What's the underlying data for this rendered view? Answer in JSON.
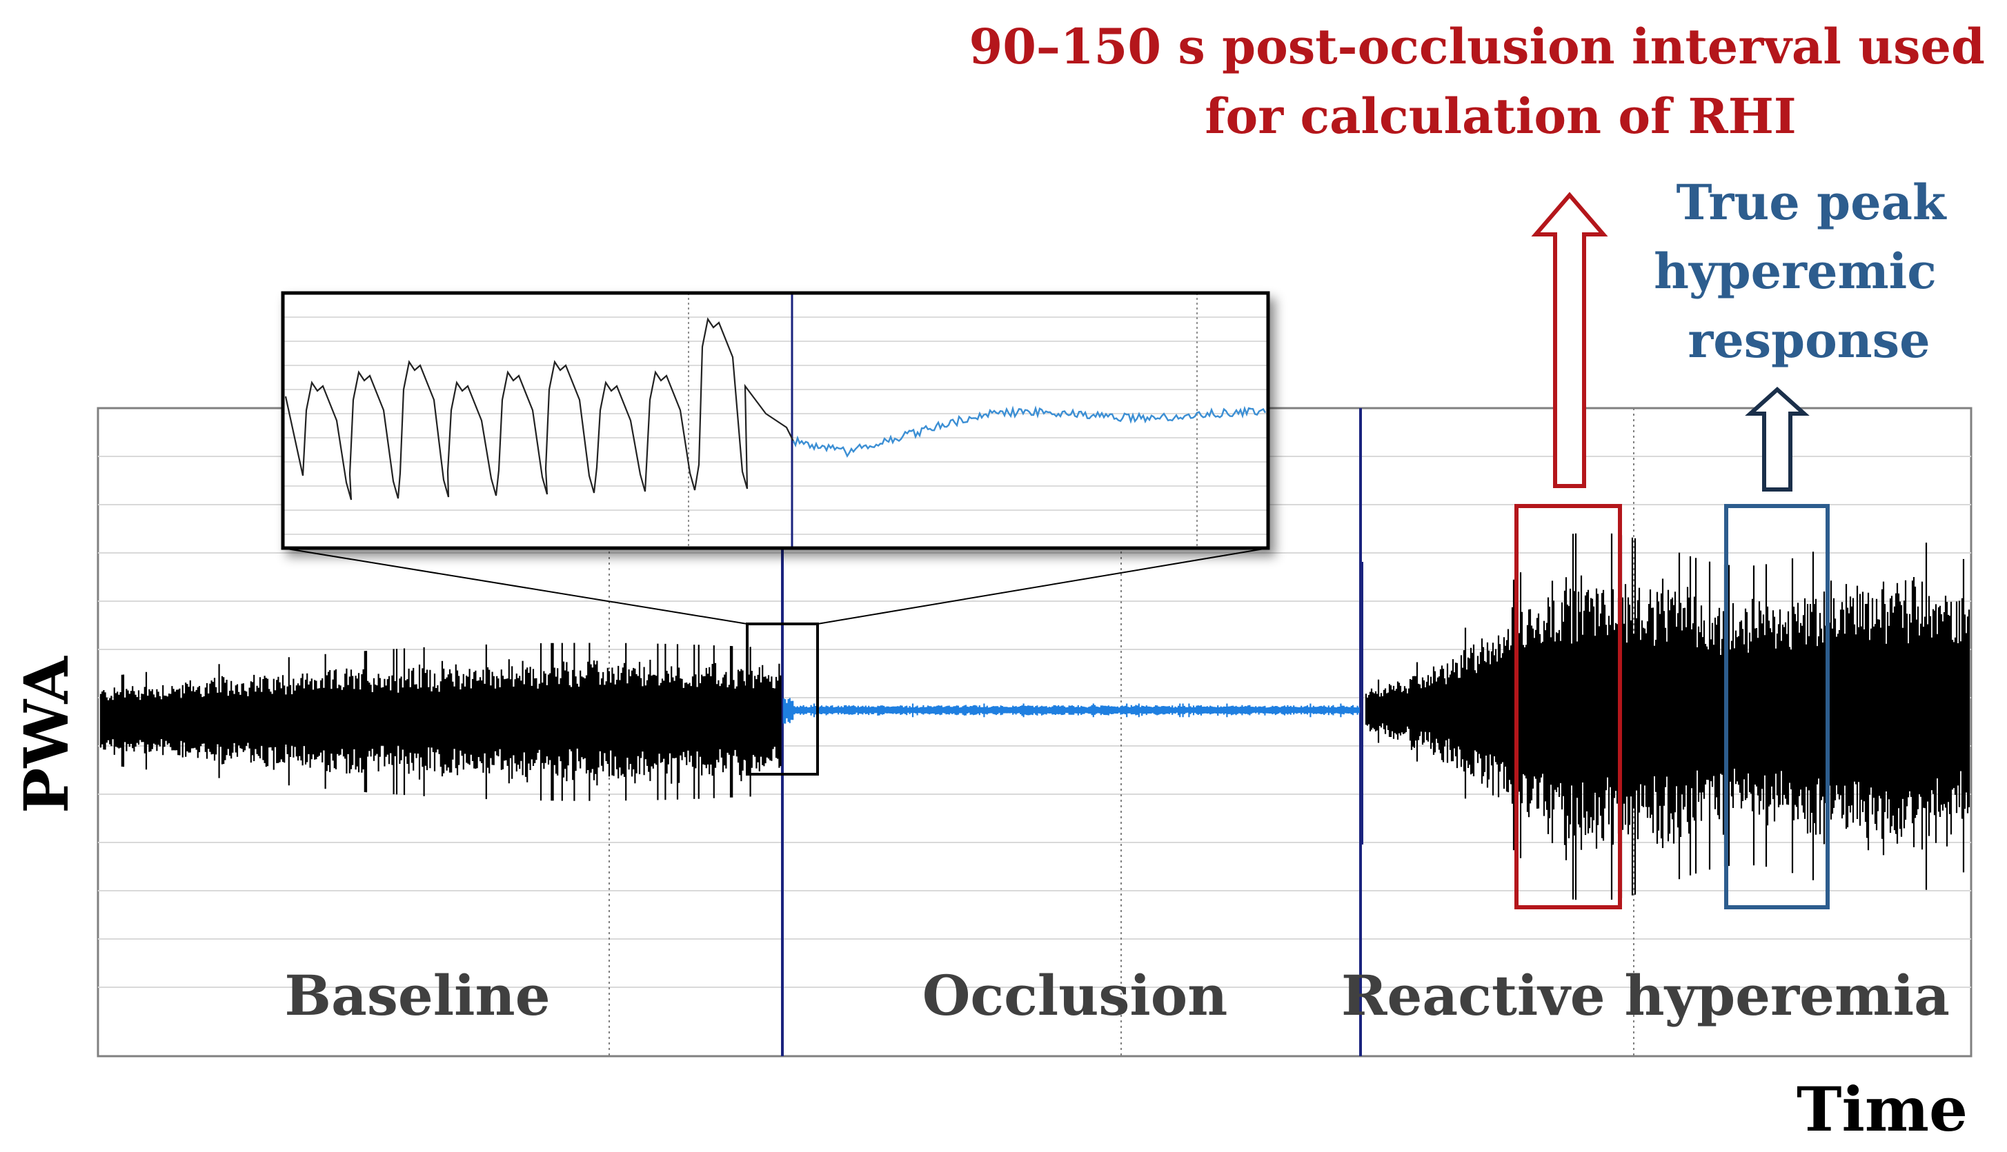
{
  "annotations": {
    "rhi_interval_line1": "90–150 s post-occlusion interval used",
    "rhi_interval_line2": "for calculation of RHI",
    "peak_line1": "True peak",
    "peak_line2": "hyperemic",
    "peak_line3": "response"
  },
  "axes": {
    "y_label": "PWA",
    "x_label": "Time"
  },
  "phases": {
    "baseline": "Baseline",
    "occlusion": "Occlusion",
    "reactive": "Reactive hyperemia"
  },
  "colors": {
    "rhi_red": "#b4161b",
    "peak_blue": "#2d5d8e",
    "signal_black": "#000000",
    "occlusion_blue": "#1f7fe0",
    "inset_blue": "#3c8fd4",
    "grid": "#d9d9d9",
    "phase_divider": "#1a237e",
    "phase_text": "#404040"
  }
}
